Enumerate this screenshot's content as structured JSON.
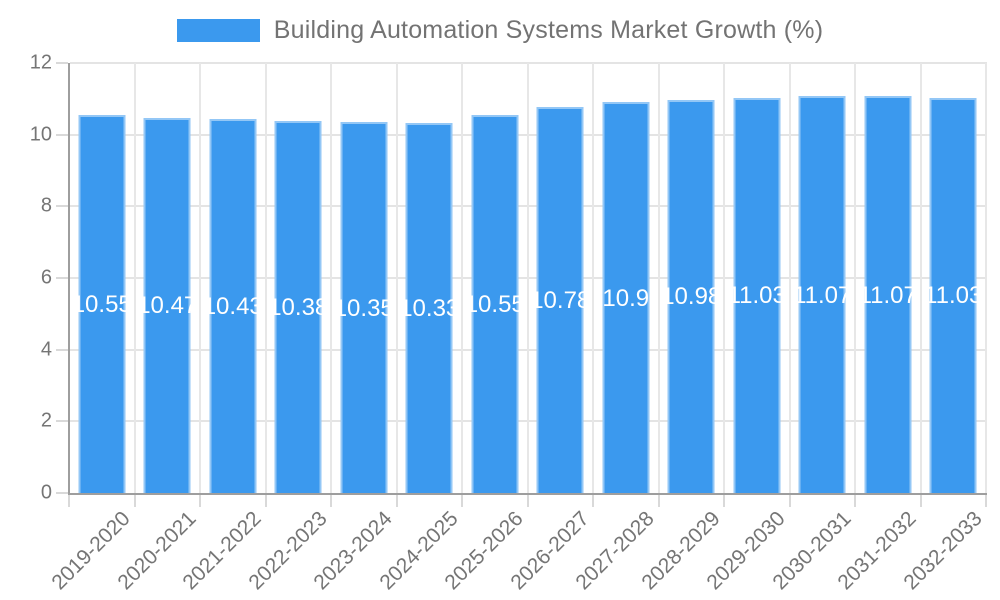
{
  "legend": {
    "label": "Building Automation Systems Market Growth (%)",
    "swatch_color": "#3B99EE"
  },
  "chart_data": {
    "type": "bar",
    "title": "Building Automation Systems Market Growth (%)",
    "categories": [
      "2019-2020",
      "2020-2021",
      "2021-2022",
      "2022-2023",
      "2023-2024",
      "2024-2025",
      "2025-2026",
      "2026-2027",
      "2027-2028",
      "2028-2029",
      "2029-2030",
      "2030-2031",
      "2031-2032",
      "2032-2033"
    ],
    "values": [
      10.55,
      10.47,
      10.43,
      10.38,
      10.35,
      10.33,
      10.55,
      10.78,
      10.9,
      10.98,
      11.03,
      11.07,
      11.07,
      11.03
    ],
    "bar_labels": [
      "10.55",
      "10.47",
      "10.43",
      "10.38",
      "10.35",
      "10.33",
      "10.55",
      "10.78",
      "10.9",
      "10.98",
      "11.03",
      "11.07",
      "11.07",
      "11.03"
    ],
    "xlabel": "",
    "ylabel": "",
    "ylim": [
      0,
      12
    ],
    "yticks": [
      0,
      2,
      4,
      6,
      8,
      10,
      12
    ],
    "grid": true,
    "legend_position": "top",
    "bar_color": "#3B99EE",
    "value_label_color": "#ffffff",
    "axis_text_color": "#757575"
  }
}
